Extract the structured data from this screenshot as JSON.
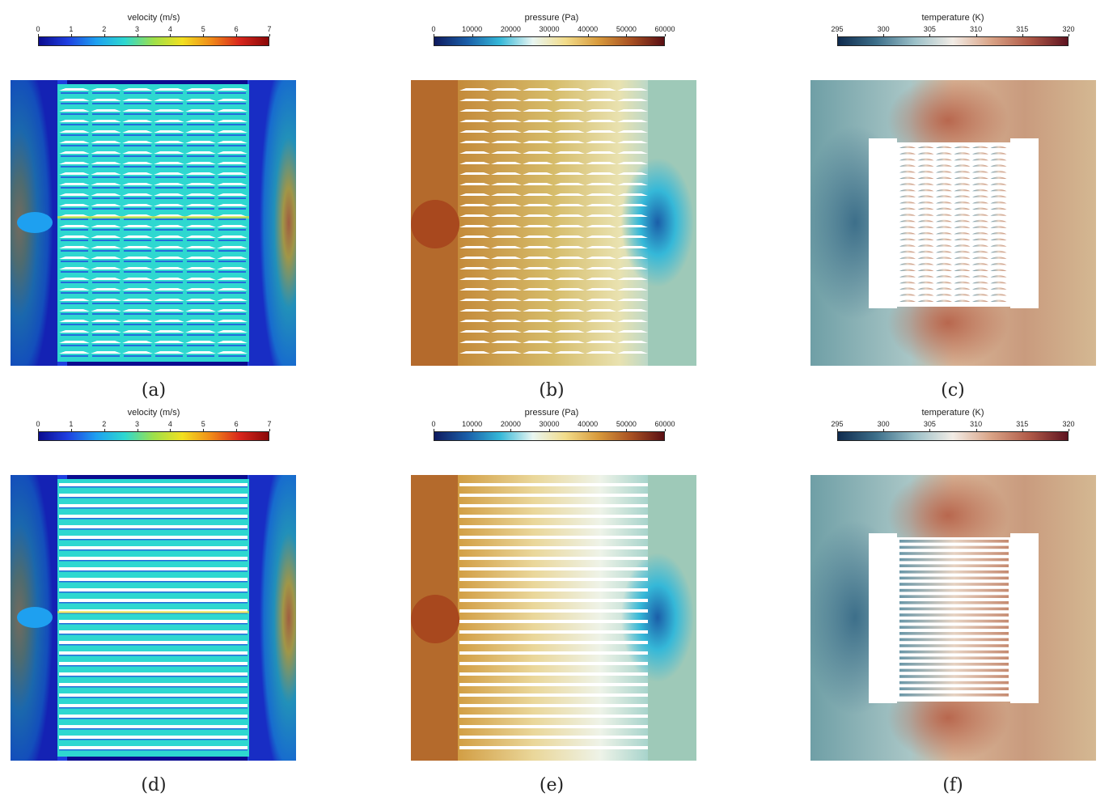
{
  "figure": {
    "panels": [
      {
        "id": "a",
        "kind": "velocity",
        "variant": "curved",
        "title": "velocity (m/s)",
        "ticks": [
          "0",
          "1",
          "2",
          "3",
          "4",
          "5",
          "6",
          "7"
        ],
        "caption": "(a)"
      },
      {
        "id": "b",
        "kind": "pressure",
        "variant": "curved",
        "title": "pressure (Pa)",
        "ticks": [
          "0",
          "10000",
          "20000",
          "30000",
          "40000",
          "50000",
          "60000"
        ],
        "caption": "(b)"
      },
      {
        "id": "c",
        "kind": "temperature",
        "variant": "curved",
        "title": "temperature (K)",
        "ticks": [
          "295",
          "300",
          "305",
          "310",
          "315",
          "320"
        ],
        "caption": "(c)"
      },
      {
        "id": "d",
        "kind": "velocity",
        "variant": "straight",
        "title": "velocity (m/s)",
        "ticks": [
          "0",
          "1",
          "2",
          "3",
          "4",
          "5",
          "6",
          "7"
        ],
        "caption": "(d)"
      },
      {
        "id": "e",
        "kind": "pressure",
        "variant": "straight",
        "title": "pressure (Pa)",
        "ticks": [
          "0",
          "10000",
          "20000",
          "30000",
          "40000",
          "50000",
          "60000"
        ],
        "caption": "(e)"
      },
      {
        "id": "f",
        "kind": "temperature",
        "variant": "straight",
        "title": "temperature (K)",
        "ticks": [
          "295",
          "300",
          "305",
          "310",
          "315",
          "320"
        ],
        "caption": "(f)"
      }
    ],
    "colormaps": {
      "velocity": [
        "#0b0b8f",
        "#1f3fe0",
        "#1ea0f0",
        "#2ed8d0",
        "#9ee04a",
        "#f2e020",
        "#f08a18",
        "#d8261c",
        "#8a0808"
      ],
      "pressure": [
        "#0e1a5e",
        "#1a5ea8",
        "#35b8d8",
        "#e9f6f2",
        "#f2dc8a",
        "#d89a3c",
        "#a85022",
        "#5a0f14"
      ],
      "temperature": [
        "#0f2b4e",
        "#3d6f8a",
        "#9bc0c8",
        "#f2ece6",
        "#d9a386",
        "#b05a48",
        "#5e1320"
      ]
    }
  }
}
